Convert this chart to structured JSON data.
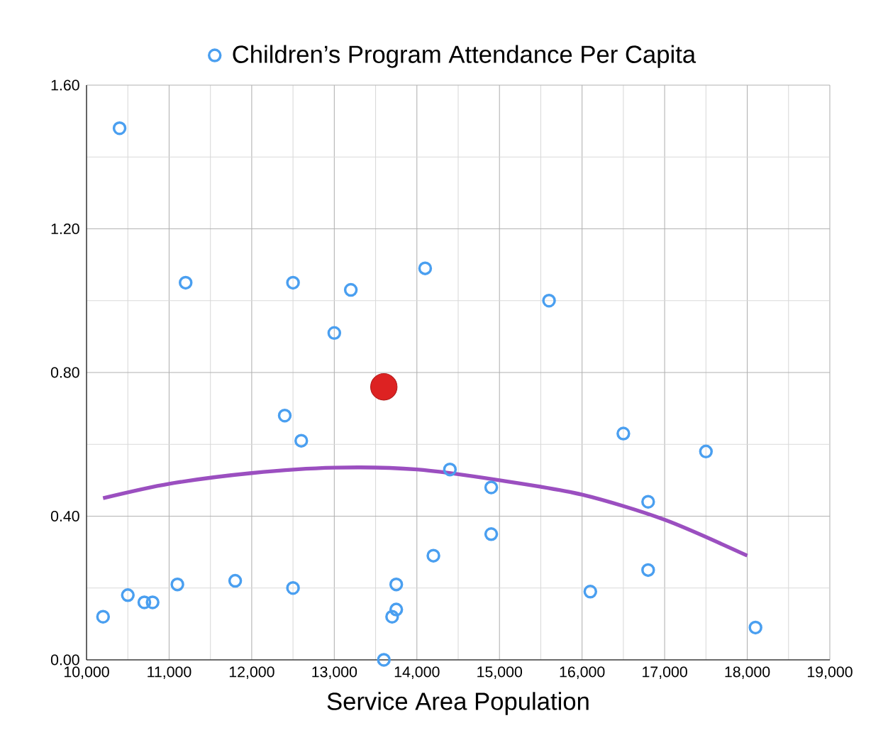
{
  "chart_data": {
    "type": "scatter",
    "xlabel": "Service Area Population",
    "legend": "top",
    "grid": true,
    "xlim": [
      10000,
      19000
    ],
    "xticks": [
      {
        "value": 10000,
        "label": "10,000"
      },
      {
        "value": 11000,
        "label": "11,000"
      },
      {
        "value": 12000,
        "label": "12,000"
      },
      {
        "value": 13000,
        "label": "13,000"
      },
      {
        "value": 14000,
        "label": "14,000"
      },
      {
        "value": 15000,
        "label": "15,000"
      },
      {
        "value": 16000,
        "label": "16,000"
      },
      {
        "value": 17000,
        "label": "17,000"
      },
      {
        "value": 18000,
        "label": "18,000"
      },
      {
        "value": 19000,
        "label": "19,000"
      }
    ],
    "ylim": [
      0,
      1.6
    ],
    "yticks": [
      {
        "value": 0,
        "label": "0.00"
      },
      {
        "value": 0.4,
        "label": "0.40"
      },
      {
        "value": 0.8,
        "label": "0.80"
      },
      {
        "value": 1.2,
        "label": "1.20"
      },
      {
        "value": 1.6,
        "label": "1.60"
      }
    ],
    "series": [
      {
        "name": "Children’s Program Attendance Per Capita",
        "marker": "circle",
        "color": "#4a9ff0",
        "x": [
          10200,
          10400,
          10500,
          10700,
          10800,
          11100,
          11200,
          11800,
          12400,
          12500,
          12500,
          12600,
          13000,
          13200,
          13600,
          13700,
          13750,
          13750,
          14100,
          14200,
          14400,
          14900,
          14900,
          15600,
          16100,
          16500,
          16800,
          16800,
          17500,
          18100
        ],
        "values": [
          0.12,
          1.48,
          0.18,
          0.16,
          0.16,
          0.21,
          1.05,
          0.22,
          0.68,
          1.05,
          0.2,
          0.61,
          0.91,
          1.03,
          0.0,
          0.12,
          0.14,
          0.21,
          1.09,
          0.29,
          0.53,
          0.48,
          0.35,
          1.0,
          0.19,
          0.63,
          0.25,
          0.44,
          0.58,
          0.09
        ]
      },
      {
        "marker": "circle",
        "color": "#dd2222",
        "x": [
          13600
        ],
        "values": [
          0.76
        ]
      },
      {
        "type": "line",
        "marker": "none",
        "color": "#9b4fc0",
        "x": [
          10200,
          11000,
          12000,
          13000,
          14000,
          15000,
          16000,
          17000,
          18000
        ],
        "values": [
          0.45,
          0.49,
          0.52,
          0.535,
          0.53,
          0.5,
          0.46,
          0.39,
          0.29
        ]
      }
    ]
  }
}
